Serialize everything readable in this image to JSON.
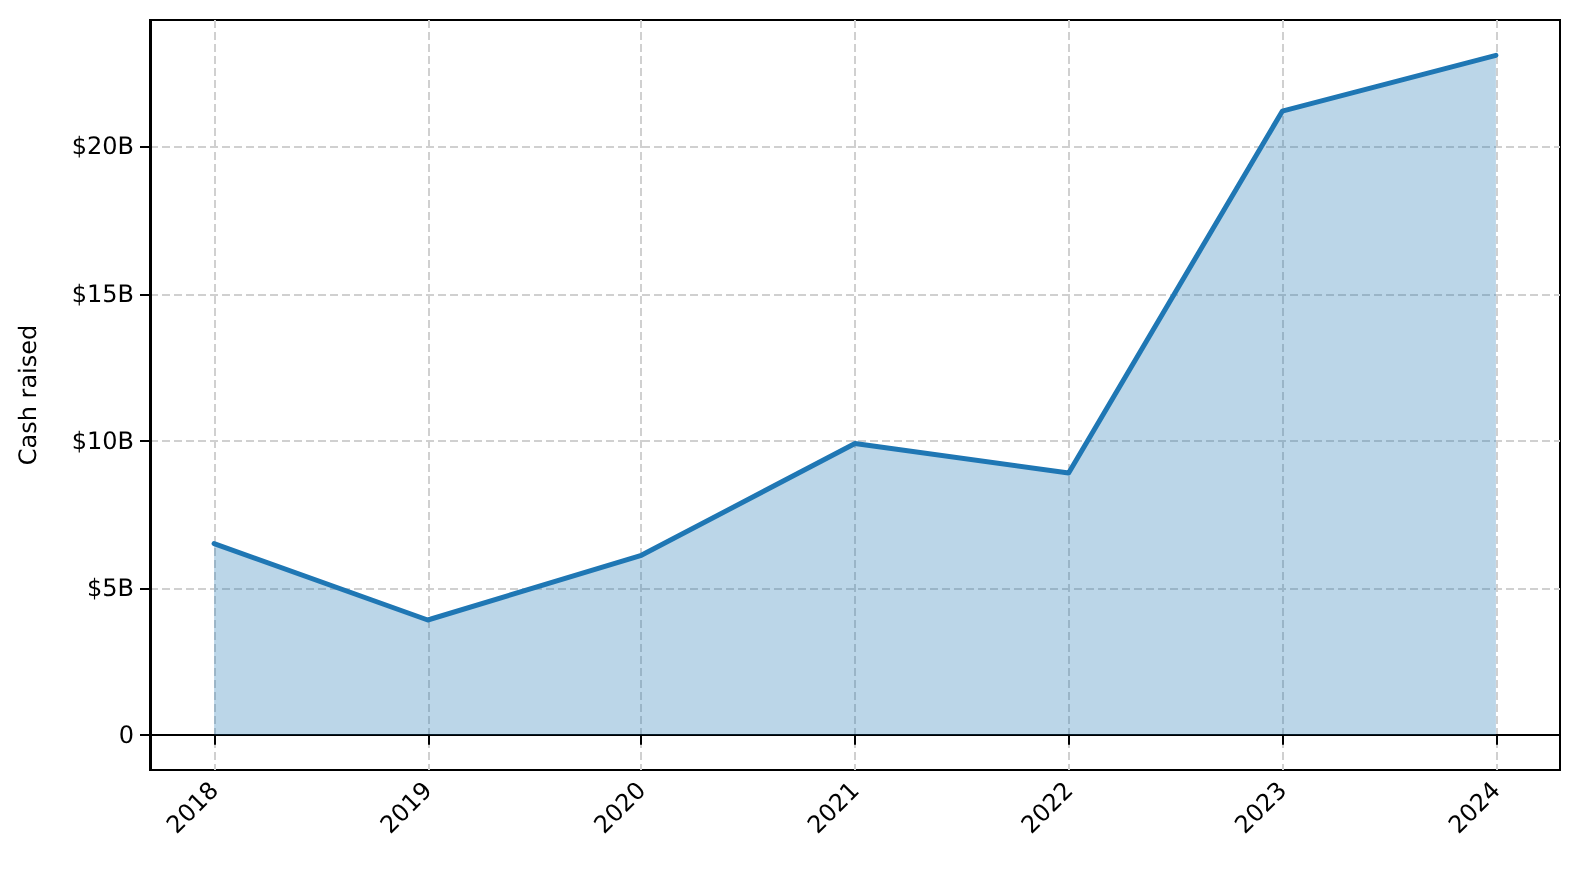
{
  "chart_data": {
    "type": "area",
    "ylabel": "Cash raised",
    "x": [
      2018,
      2019,
      2020,
      2021,
      2022,
      2023,
      2024
    ],
    "series": [
      {
        "color": "#1f77b4",
        "values": [
          6.5,
          3.9,
          6.1,
          9.9,
          8.9,
          21.2,
          23.1
        ]
      }
    ],
    "xlim": [
      2017.7,
      2024.3
    ],
    "xticks": [
      2018,
      2019,
      2020,
      2021,
      2022,
      2023,
      2024
    ],
    "ylim": [
      -1.2,
      24.3
    ],
    "yticks": [
      {
        "value": 0,
        "label": "0"
      },
      {
        "value": 5,
        "label": "$5B"
      },
      {
        "value": 10,
        "label": "$10B"
      },
      {
        "value": 15,
        "label": "$15B"
      },
      {
        "value": 20,
        "label": "$20B"
      }
    ],
    "grid": true,
    "line_style": "solid",
    "marker": "none"
  }
}
